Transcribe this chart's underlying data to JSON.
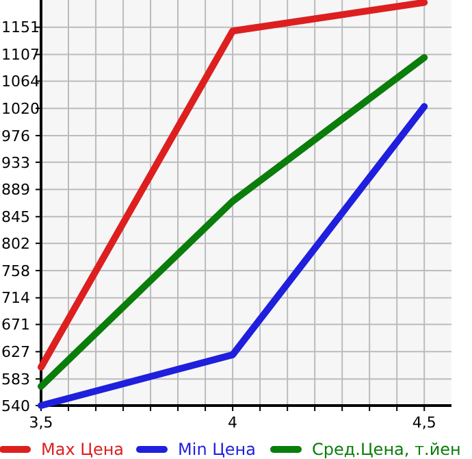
{
  "chart_data": {
    "type": "line",
    "x": [
      3.5,
      4,
      4.5
    ],
    "xlim": [
      3.5,
      4.571
    ],
    "xticks": [
      {
        "value": 3.5,
        "label": "3,5"
      },
      {
        "value": 3.5714,
        "label": null
      },
      {
        "value": 3.6429,
        "label": null
      },
      {
        "value": 3.7143,
        "label": null
      },
      {
        "value": 3.7857,
        "label": null
      },
      {
        "value": 3.8571,
        "label": null
      },
      {
        "value": 3.9286,
        "label": null
      },
      {
        "value": 4,
        "label": "4"
      },
      {
        "value": 4.0714,
        "label": null
      },
      {
        "value": 4.1429,
        "label": null
      },
      {
        "value": 4.2143,
        "label": null
      },
      {
        "value": 4.2857,
        "label": null
      },
      {
        "value": 4.3571,
        "label": null
      },
      {
        "value": 4.4286,
        "label": null
      },
      {
        "value": 4.5,
        "label": "4,5"
      }
    ],
    "ylim": [
      540,
      1195
    ],
    "yticks": [
      540,
      583,
      627,
      671,
      714,
      758,
      802,
      845,
      889,
      933,
      976,
      1020,
      1064,
      1107,
      1151
    ],
    "grid": true,
    "legend": "bottom",
    "marker": "none",
    "line_style": "solid",
    "series": [
      {
        "name": "Max Цена",
        "color": "#dd1f1f",
        "values": [
          602,
          1145,
          1191
        ]
      },
      {
        "name": "Min Цена",
        "color": "#1f1fdd",
        "values": [
          540,
          622,
          1023
        ]
      },
      {
        "name": "Сред.Цена, т.йен",
        "color": "#0a7d0a",
        "values": [
          571,
          870,
          1102
        ]
      }
    ]
  }
}
